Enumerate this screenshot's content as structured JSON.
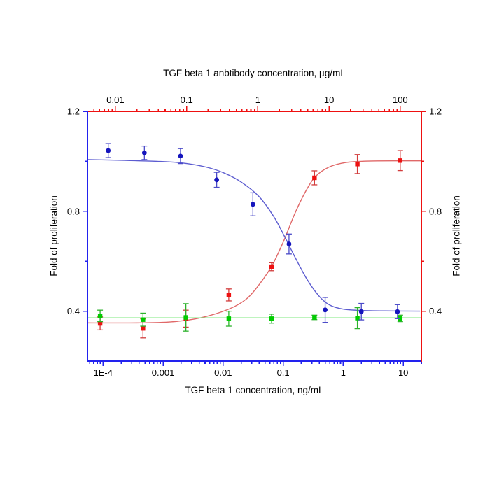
{
  "chart_data": {
    "type": "scatter",
    "title": "",
    "top_axis": {
      "title": "TGF beta 1 anbtibody concentration, µg/mL",
      "scale": "log",
      "range": [
        0.00405,
        198
      ],
      "color": "#ee1111",
      "major_ticks": [
        {
          "value": 0.01,
          "label": "0.01"
        },
        {
          "value": 0.1,
          "label": "0.1"
        },
        {
          "value": 1,
          "label": "1"
        },
        {
          "value": 10,
          "label": "10"
        },
        {
          "value": 100,
          "label": "100"
        }
      ]
    },
    "bottom_axis": {
      "title": "TGF beta 1 concentration, ng/mL",
      "scale": "log",
      "range": [
        5.5e-05,
        20
      ],
      "color": "#2222ee",
      "major_ticks": [
        {
          "value": 0.0001,
          "label": "1E-4"
        },
        {
          "value": 0.001,
          "label": "0.001"
        },
        {
          "value": 0.01,
          "label": "0.01"
        },
        {
          "value": 0.1,
          "label": "0.1"
        },
        {
          "value": 1,
          "label": "1"
        },
        {
          "value": 10,
          "label": "10"
        }
      ]
    },
    "left_axis": {
      "title": "Fold of proliferation",
      "range": [
        0.2,
        1.2
      ],
      "color": "#2222ee",
      "major_ticks": [
        {
          "value": 0.4,
          "label": "0.4"
        },
        {
          "value": 0.8,
          "label": "0.8"
        },
        {
          "value": 1.2,
          "label": "1.2"
        }
      ],
      "minor_ticks": [
        0.6,
        1.0
      ]
    },
    "right_axis": {
      "title": "Fold of proliferation",
      "range": [
        0.2,
        1.2
      ],
      "color": "#ee1111",
      "major_ticks": [
        {
          "value": 0.4,
          "label": "0.4"
        },
        {
          "value": 0.8,
          "label": "0.8"
        },
        {
          "value": 1.2,
          "label": "1.2"
        }
      ],
      "minor_ticks": [
        0.6,
        1.0
      ]
    },
    "series": [
      {
        "id": "antibody-neutralization",
        "x_axis": "top",
        "marker": "square",
        "marker_color": "#ee1111",
        "error_color": "#d23c3c",
        "line_color": "#e06868",
        "points": [
          {
            "x": 0.0061,
            "y": 0.351,
            "err": 0.026
          },
          {
            "x": 0.0244,
            "y": 0.331,
            "err": 0.038
          },
          {
            "x": 0.0977,
            "y": 0.37,
            "err": 0.034
          },
          {
            "x": 0.391,
            "y": 0.465,
            "err": 0.024
          },
          {
            "x": 1.56,
            "y": 0.578,
            "err": 0.016
          },
          {
            "x": 6.25,
            "y": 0.934,
            "err": 0.028
          },
          {
            "x": 25,
            "y": 0.989,
            "err": 0.038
          },
          {
            "x": 100,
            "y": 1.003,
            "err": 0.04
          }
        ],
        "fit_curve": [
          [
            0.004,
            0.353
          ],
          [
            0.02,
            0.353
          ],
          [
            0.06,
            0.357
          ],
          [
            0.15,
            0.372
          ],
          [
            0.39,
            0.408
          ],
          [
            0.7,
            0.45
          ],
          [
            1.1,
            0.515
          ],
          [
            1.6,
            0.585
          ],
          [
            2.3,
            0.68
          ],
          [
            3.3,
            0.79
          ],
          [
            4.7,
            0.88
          ],
          [
            6.5,
            0.94
          ],
          [
            10,
            0.977
          ],
          [
            17,
            0.995
          ],
          [
            35,
            1.001
          ],
          [
            100,
            1.002
          ],
          [
            198,
            1.002
          ]
        ]
      },
      {
        "id": "control-antibody-alone",
        "x_axis": "top",
        "marker": "square",
        "marker_color": "#00cc00",
        "error_color": "#2db22d",
        "line_color": "#7de87d",
        "points": [
          {
            "x": 0.0061,
            "y": 0.381,
            "err": 0.023
          },
          {
            "x": 0.0244,
            "y": 0.366,
            "err": 0.026
          },
          {
            "x": 0.0977,
            "y": 0.375,
            "err": 0.055
          },
          {
            "x": 0.391,
            "y": 0.37,
            "err": 0.03
          },
          {
            "x": 1.56,
            "y": 0.37,
            "err": 0.018
          },
          {
            "x": 6.25,
            "y": 0.375,
            "err": 0.009
          },
          {
            "x": 25,
            "y": 0.372,
            "err": 0.042
          },
          {
            "x": 100,
            "y": 0.371,
            "err": 0.013
          }
        ],
        "fit_curve": [
          [
            0.004,
            0.373
          ],
          [
            198,
            0.373
          ]
        ]
      },
      {
        "id": "tgfb1-dose-response",
        "x_axis": "bottom",
        "marker": "circle",
        "marker_color": "#1515bd",
        "error_color": "#4a4ac8",
        "line_color": "#5c5cd0",
        "points": [
          {
            "x": 0.000122,
            "y": 1.043,
            "err": 0.028
          },
          {
            "x": 0.000488,
            "y": 1.034,
            "err": 0.027
          },
          {
            "x": 0.00195,
            "y": 1.021,
            "err": 0.03
          },
          {
            "x": 0.00781,
            "y": 0.926,
            "err": 0.03
          },
          {
            "x": 0.0313,
            "y": 0.828,
            "err": 0.046
          },
          {
            "x": 0.125,
            "y": 0.669,
            "err": 0.04
          },
          {
            "x": 0.5,
            "y": 0.405,
            "err": 0.05
          },
          {
            "x": 2,
            "y": 0.398,
            "err": 0.033
          },
          {
            "x": 8,
            "y": 0.398,
            "err": 0.028
          }
        ],
        "fit_curve": [
          [
            5.6e-05,
            1.007
          ],
          [
            0.0002,
            1.004
          ],
          [
            0.0008,
            1.0
          ],
          [
            0.002,
            0.994
          ],
          [
            0.005,
            0.978
          ],
          [
            0.01,
            0.955
          ],
          [
            0.02,
            0.917
          ],
          [
            0.04,
            0.858
          ],
          [
            0.07,
            0.778
          ],
          [
            0.105,
            0.7
          ],
          [
            0.16,
            0.613
          ],
          [
            0.25,
            0.527
          ],
          [
            0.4,
            0.459
          ],
          [
            0.6,
            0.424
          ],
          [
            1.0,
            0.408
          ],
          [
            2,
            0.403
          ],
          [
            5,
            0.401
          ],
          [
            19,
            0.4
          ]
        ]
      }
    ]
  }
}
